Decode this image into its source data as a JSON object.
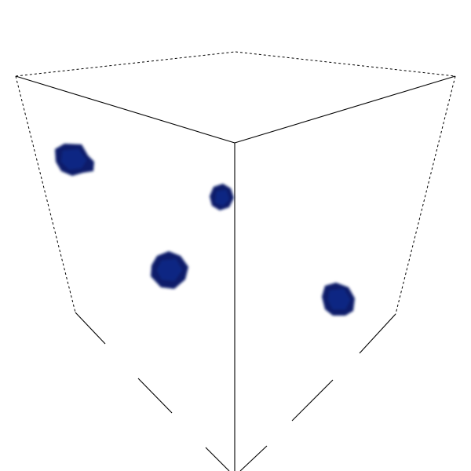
{
  "scene": {
    "background_color": "#ffffff",
    "edge_color": "#000000",
    "blob_color": "#0a1f6b",
    "blob_core_color": "#0d2a8a",
    "blob_count": 4
  }
}
